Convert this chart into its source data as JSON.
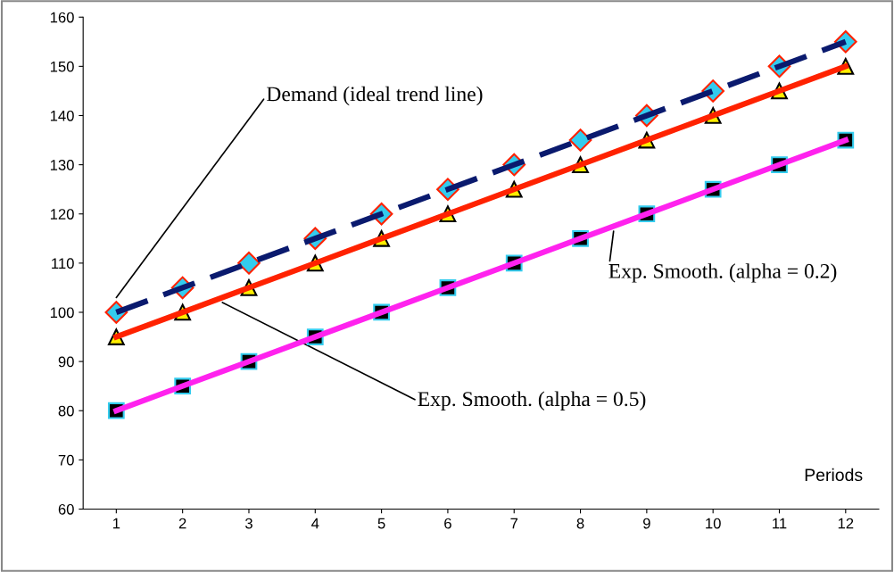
{
  "chart_data": {
    "type": "line",
    "xlabel": "Periods",
    "categories": [
      "1",
      "2",
      "3",
      "4",
      "5",
      "6",
      "7",
      "8",
      "9",
      "10",
      "11",
      "12"
    ],
    "series": [
      {
        "name": "Demand (ideal trend line)",
        "color": "#0a1a6e",
        "line_style": "dashed",
        "marker": "diamond",
        "values": [
          100,
          105,
          110,
          115,
          120,
          125,
          130,
          135,
          140,
          145,
          150,
          155
        ]
      },
      {
        "name": "Exp. Smooth. (alpha = 0.5)",
        "color": "#ff2200",
        "line_style": "solid",
        "marker": "triangle",
        "values": [
          95,
          100,
          105,
          110,
          115,
          120,
          125,
          130,
          135,
          140,
          145,
          150
        ]
      },
      {
        "name": "Exp. Smooth. (alpha = 0.2)",
        "color": "#ff22ee",
        "line_style": "solid",
        "marker": "square",
        "values": [
          80,
          85,
          90,
          95,
          100,
          105,
          110,
          115,
          120,
          125,
          130,
          135
        ]
      }
    ],
    "ylim": [
      60,
      160
    ],
    "yticks": [
      60,
      70,
      80,
      90,
      100,
      110,
      120,
      130,
      140,
      150,
      160
    ],
    "grid": false
  }
}
